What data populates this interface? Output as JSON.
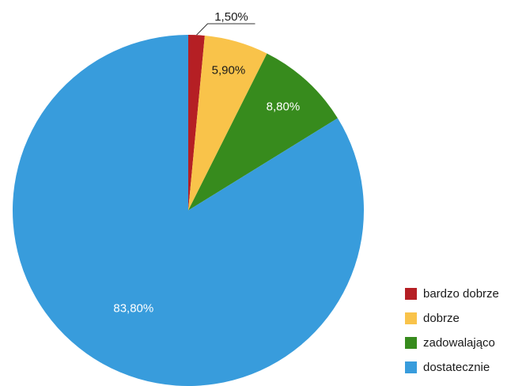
{
  "chart_data": {
    "type": "pie",
    "title": "",
    "start_angle_deg": 0,
    "direction": "clockwise",
    "legend_position": "bottom-right",
    "slices": [
      {
        "name": "bardzo dobrze",
        "value": 1.5,
        "label": "1,50%",
        "color": "#b51f24",
        "label_color": "#1a1a1a",
        "label_outside": true
      },
      {
        "name": "dobrze",
        "value": 5.9,
        "label": "5,90%",
        "color": "#f9c34a",
        "label_color": "#1a1a1a",
        "label_outside": false
      },
      {
        "name": "zadowalająco",
        "value": 8.8,
        "label": "8,80%",
        "color": "#378b1d",
        "label_color": "#ffffff",
        "label_outside": false
      },
      {
        "name": "dostatecznie",
        "value": 83.8,
        "label": "83,80%",
        "color": "#389cdc",
        "label_color": "#ffffff",
        "label_outside": false
      }
    ]
  }
}
